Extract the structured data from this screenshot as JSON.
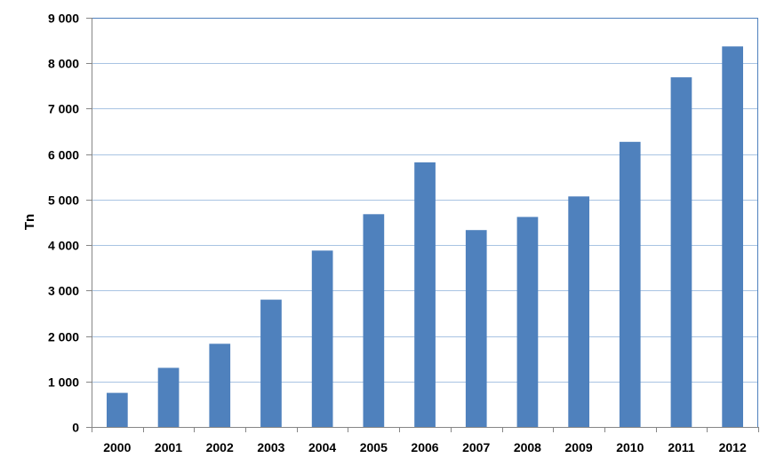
{
  "chart_data": {
    "type": "bar",
    "title": "",
    "xlabel": "",
    "ylabel": "Tn",
    "categories": [
      "2000",
      "2001",
      "2002",
      "2003",
      "2004",
      "2005",
      "2006",
      "2007",
      "2008",
      "2009",
      "2010",
      "2011",
      "2012"
    ],
    "values": [
      750,
      1300,
      1830,
      2800,
      3880,
      4680,
      5820,
      4330,
      4620,
      5070,
      6270,
      7690,
      8370
    ],
    "ylim": [
      0,
      9000
    ],
    "y_ticks": [
      0,
      1000,
      2000,
      3000,
      4000,
      5000,
      6000,
      7000,
      8000,
      9000
    ],
    "y_tick_labels": [
      "0",
      "1 000",
      "2 000",
      "3 000",
      "4 000",
      "5 000",
      "6 000",
      "7 000",
      "8 000",
      "9 000"
    ],
    "grid": true,
    "legend": "none",
    "colors": {
      "bar": "#4F81BD",
      "grid": "#A9C4E3",
      "frame": "#4F81BD",
      "axis": "#868686"
    }
  }
}
